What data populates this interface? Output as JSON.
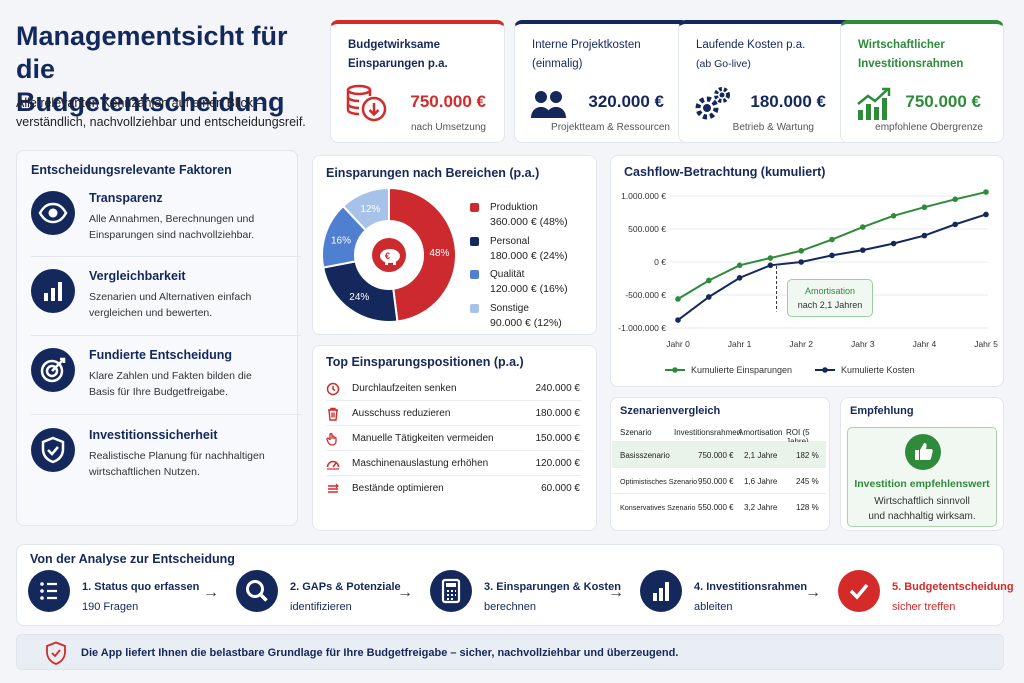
{
  "header": {
    "title_line1": "Managementsicht für",
    "title_line2": "die Budgetentscheidung",
    "subtitle_line1": "Alle relevanten Kennzahlen auf einen Blick –",
    "subtitle_line2": "verständlich, nachvollziehbar und entscheidungsreif."
  },
  "kpis": [
    {
      "title_line1": "Budgetwirksame",
      "title_line2": "Einsparungen p.a.",
      "value": "750.000 €",
      "sub": "nach Umsetzung",
      "icon": "coins-down-icon",
      "accent": "#d42a2a"
    },
    {
      "title_line1": "Interne Projektkosten",
      "title_line2": "(einmalig)",
      "value": "320.000 €",
      "sub": "Projektteam & Ressourcen",
      "icon": "team-icon",
      "accent": "#14285c"
    },
    {
      "title_line1": "Laufende Kosten p.a.",
      "title_line2": "(ab Go-live)",
      "value": "180.000 €",
      "sub": "Betrieb & Wartung",
      "icon": "gears-icon",
      "accent": "#14285c"
    },
    {
      "title_line1": "Wirtschaftlicher",
      "title_line2": "Investitionsrahmen",
      "value": "750.000 €",
      "sub": "empfohlene Obergrenze",
      "icon": "growth-chart-icon",
      "accent": "#2e8b3a"
    }
  ],
  "factors": {
    "title": "Entscheidungsrelevante Faktoren",
    "items": [
      {
        "title": "Transparenz",
        "desc_line1": "Alle Annahmen, Berechnungen und",
        "desc_line2": "Einsparungen sind nachvollziehbar.",
        "icon": "eye-icon"
      },
      {
        "title": "Vergleichbarkeit",
        "desc_line1": "Szenarien und Alternativen einfach",
        "desc_line2": "vergleichen und bewerten.",
        "icon": "bar-chart-icon"
      },
      {
        "title": "Fundierte Entscheidung",
        "desc_line1": "Klare Zahlen und Fakten bilden die",
        "desc_line2": "Basis für Ihre Budgetfreigabe.",
        "icon": "target-icon"
      },
      {
        "title": "Investitionssicherheit",
        "desc_line1": "Realistische Planung für nachhaltigen",
        "desc_line2": "wirtschaftlichen Nutzen.",
        "icon": "shield-check-icon"
      }
    ]
  },
  "savings": {
    "title": "Einsparungen nach Bereichen (p.a.)",
    "center_icon": "piggy-bank-icon",
    "legend": [
      {
        "name": "Produktion",
        "detail": "360.000 € (48%)"
      },
      {
        "name": "Personal",
        "detail": "180.000 € (24%)"
      },
      {
        "name": "Qualität",
        "detail": "120.000 € (16%)"
      },
      {
        "name": "Sonstige",
        "detail": "90.000 € (12%)"
      }
    ],
    "colors": [
      "#cc2a2e",
      "#14285c",
      "#4e7fd1",
      "#a7c2e8"
    ]
  },
  "chart_data": [
    {
      "type": "pie",
      "title": "Einsparungen nach Bereichen (p.a.)",
      "categories": [
        "Produktion",
        "Personal",
        "Qualität",
        "Sonstige"
      ],
      "values": [
        48,
        24,
        16,
        12
      ],
      "labels": [
        "48%",
        "24%",
        "16%",
        "12%"
      ]
    },
    {
      "type": "line",
      "title": "Cashflow-Betrachtung (kumuliert)",
      "x": [
        "Jahr 0",
        "Jahr 1",
        "Jahr 2",
        "Jahr 3",
        "Jahr 4",
        "Jahr 5"
      ],
      "ylim": [
        -1000000,
        1000000
      ],
      "yticks": [
        1000000,
        500000,
        0,
        -500000,
        -1000000
      ],
      "ytick_labels": [
        "1.000.000 €",
        "500.000 €",
        "0 €",
        "-500.000 €",
        "-1.000.000 €"
      ],
      "grid": true,
      "legend": "bottom",
      "series": [
        {
          "name": "Kumulierte Einsparungen",
          "color": "#2e8b3a",
          "x": [
            0,
            0.5,
            1,
            1.5,
            2,
            2.5,
            3,
            3.5,
            4,
            4.5,
            5
          ],
          "values": [
            -560000,
            -280000,
            -50000,
            60000,
            170000,
            340000,
            530000,
            700000,
            830000,
            950000,
            1060000
          ]
        },
        {
          "name": "Kumulierte Kosten",
          "color": "#14285c",
          "x": [
            0,
            0.5,
            1,
            1.5,
            2,
            2.5,
            3,
            3.5,
            4,
            4.5,
            5
          ],
          "values": [
            -880000,
            -530000,
            -240000,
            -50000,
            0,
            100000,
            180000,
            280000,
            400000,
            570000,
            720000
          ]
        }
      ],
      "annotation": {
        "title": "Amortisation",
        "text": "nach 2,1 Jahren",
        "x": 1.6
      }
    }
  ],
  "cashflow": {
    "title": "Cashflow-Betrachtung (kumuliert)",
    "annotation_title": "Amortisation",
    "annotation_text": "nach 2,1 Jahren"
  },
  "positions": {
    "title": "Top Einsparungspositionen (p.a.)",
    "rows": [
      {
        "label": "Durchlaufzeiten senken",
        "value": "240.000 €",
        "icon": "clock-icon"
      },
      {
        "label": "Ausschuss reduzieren",
        "value": "180.000 €",
        "icon": "trash-icon"
      },
      {
        "label": "Manuelle Tätigkeiten vermeiden",
        "value": "150.000 €",
        "icon": "hand-icon"
      },
      {
        "label": "Maschinenauslastung erhöhen",
        "value": "120.000 €",
        "icon": "gauge-icon"
      },
      {
        "label": "Bestände optimieren",
        "value": "60.000 €",
        "icon": "stack-icon"
      }
    ]
  },
  "scenarios": {
    "title": "Szenarienvergleich",
    "headers": [
      "Szenario",
      "Investitionsrahmen",
      "Amortisation",
      "ROI (5 Jahre)"
    ],
    "rows": [
      [
        "Basisszenario",
        "750.000 €",
        "2,1 Jahre",
        "182 %"
      ],
      [
        "Optimistisches Szenario",
        "950.000 €",
        "1,6 Jahre",
        "245 %"
      ],
      [
        "Konservatives Szenario",
        "550.000 €",
        "3,2 Jahre",
        "128 %"
      ]
    ]
  },
  "recommendation": {
    "title": "Empfehlung",
    "headline": "Investition empfehlenswert",
    "text_line1": "Wirtschaftlich sinnvoll",
    "text_line2": "und nachhaltig wirksam.",
    "icon": "thumbs-up-icon"
  },
  "process": {
    "title": "Von der Analyse zur Entscheidung",
    "steps": [
      {
        "line1": "1. Status quo erfassen",
        "line2": "190 Fragen",
        "icon": "list-icon"
      },
      {
        "line1": "2. GAPs & Potenziale",
        "line2": "identifizieren",
        "icon": "magnifier-icon"
      },
      {
        "line1": "3. Einsparungen & Kosten",
        "line2": "berechnen",
        "icon": "calculator-icon"
      },
      {
        "line1": "4. Investitionsrahmen",
        "line2": "ableiten",
        "icon": "bar-chart-icon"
      },
      {
        "line1": "5. Budgetentscheidung",
        "line2": "sicher treffen",
        "icon": "check-icon"
      }
    ],
    "arrow": "→"
  },
  "footer": {
    "text": "Die App liefert Ihnen die belastbare Grundlage für Ihre Budgetfreigabe – sicher, nachvollziehbar und überzeugend.",
    "icon": "shield-check-icon"
  }
}
